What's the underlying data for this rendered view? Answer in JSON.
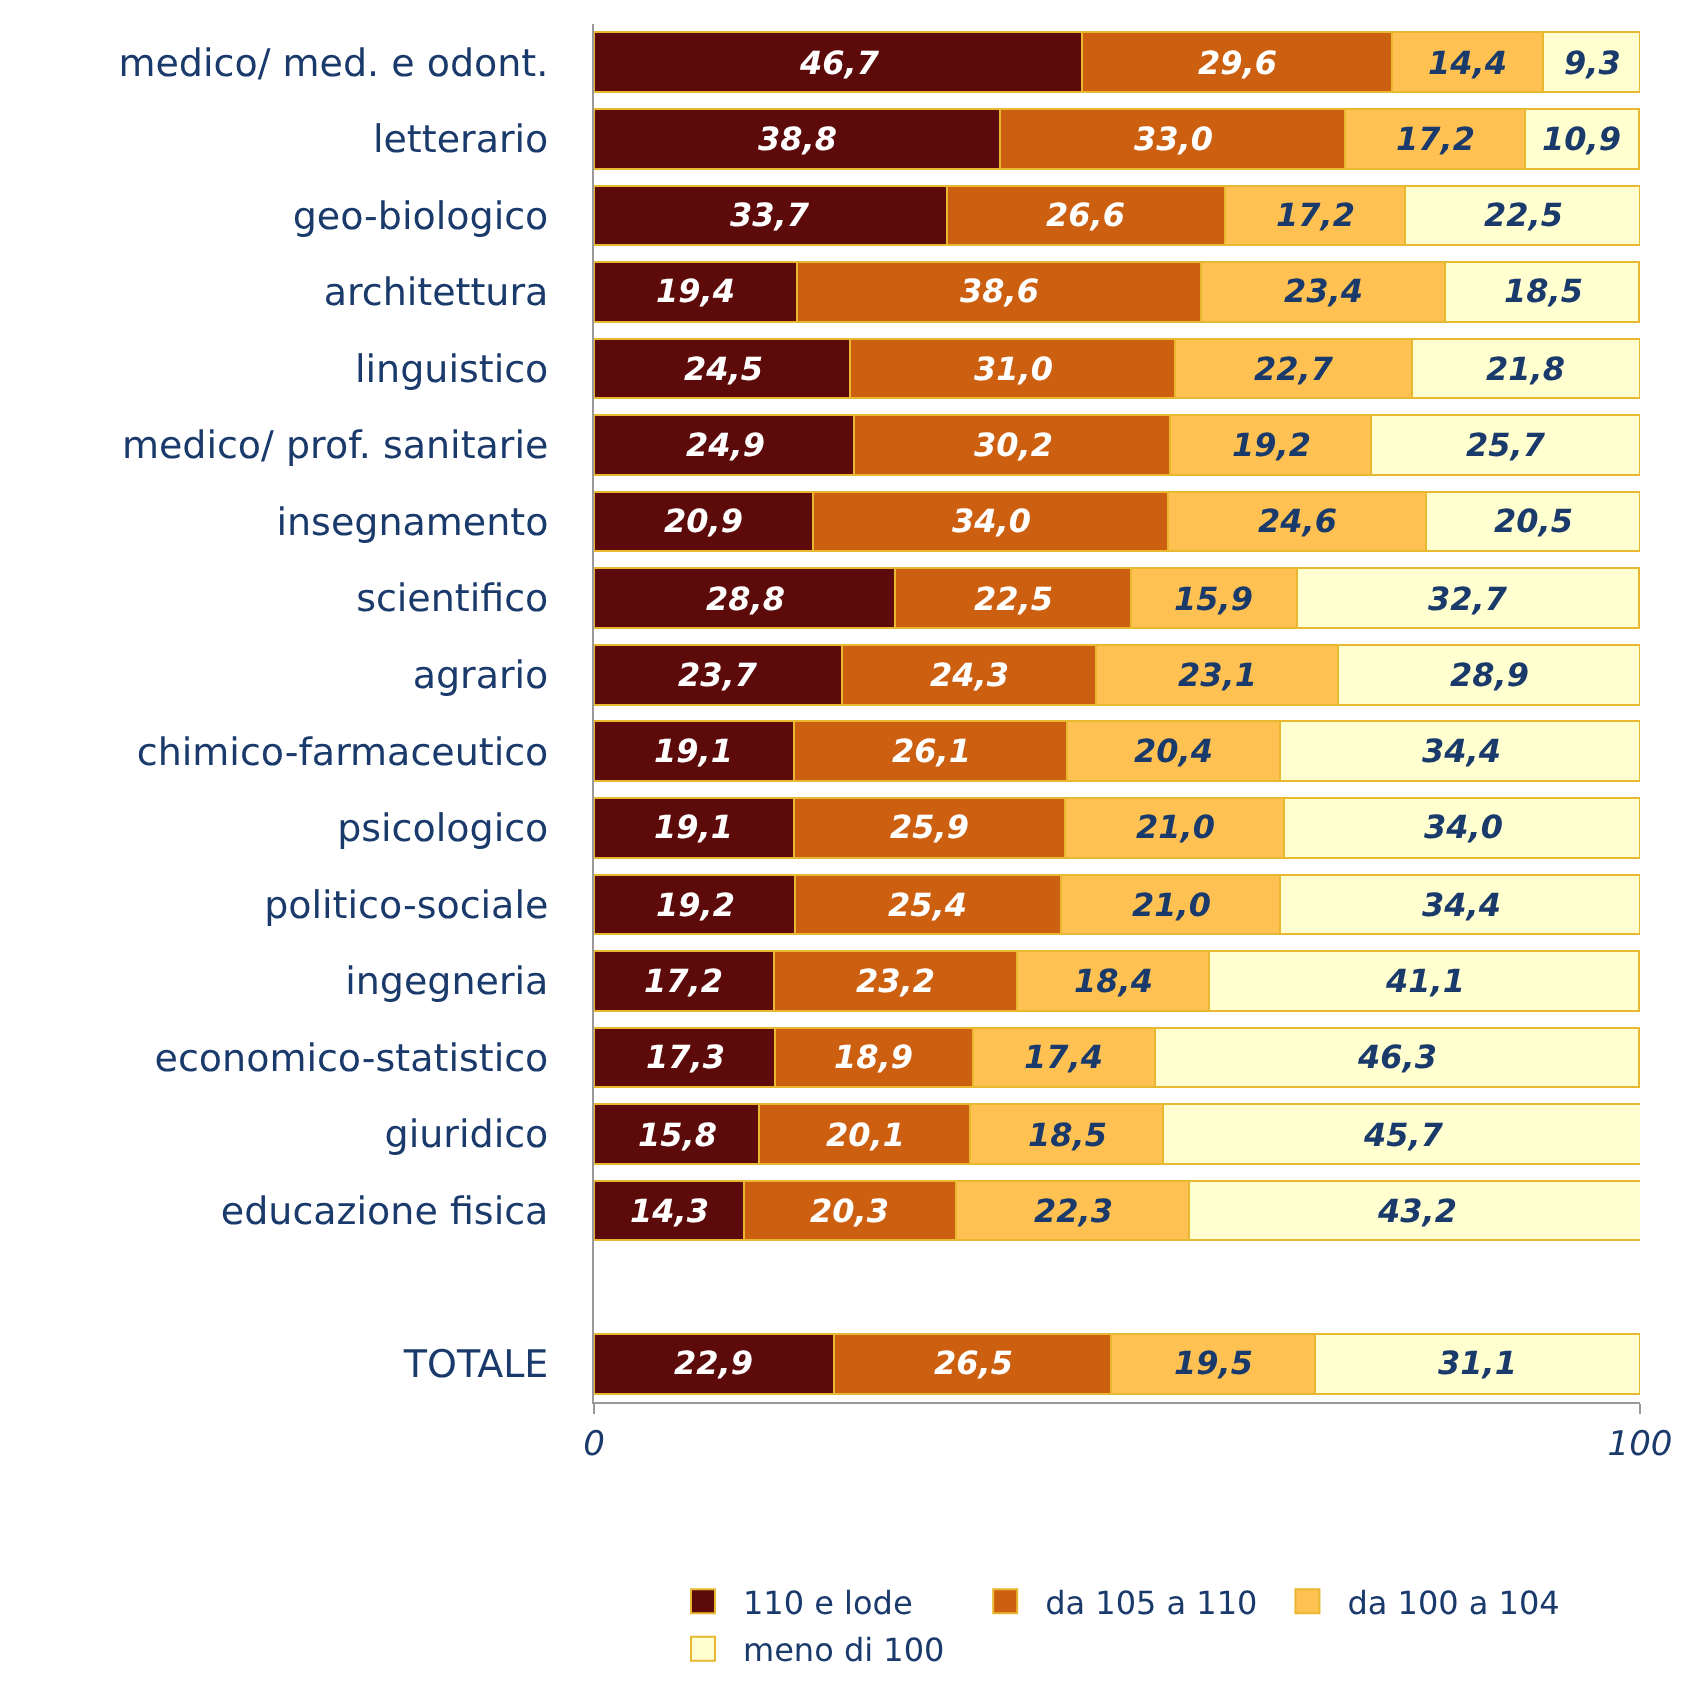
{
  "chart_data": {
    "type": "bar",
    "orientation": "horizontal",
    "stacked": true,
    "legend": "bottom",
    "xlim": [
      0,
      100
    ],
    "xticks": [
      0,
      100
    ],
    "categories": [
      "medico/ med. e odont.",
      "letterario",
      "geo-biologico",
      "architettura",
      "linguistico",
      "medico/ prof. sanitarie",
      "insegnamento",
      "scientifico",
      "agrario",
      "chimico-farmaceutico",
      "psicologico",
      "politico-sociale",
      "ingegneria",
      "economico-statistico",
      "giuridico",
      "educazione fisica",
      null,
      "TOTALE"
    ],
    "series": [
      {
        "name": "110 e lode",
        "color": "#5c0a0a",
        "values": [
          46.7,
          38.8,
          33.7,
          19.4,
          24.5,
          24.9,
          20.9,
          28.8,
          23.7,
          19.1,
          19.1,
          19.2,
          17.2,
          17.3,
          15.8,
          14.3,
          null,
          22.9
        ],
        "value_labels": [
          "46,7",
          "38,8",
          "33,7",
          "19,4",
          "24,5",
          "24,9",
          "20,9",
          "28,8",
          "23,7",
          "19,1",
          "19,1",
          "19,2",
          "17,2",
          "17,3",
          "15,8",
          "14,3",
          null,
          "22,9"
        ]
      },
      {
        "name": "da 105 a 110",
        "color": "#cc5f10",
        "values": [
          29.6,
          33.0,
          26.6,
          38.6,
          31.0,
          30.2,
          34.0,
          22.5,
          24.3,
          26.1,
          25.9,
          25.4,
          23.2,
          18.9,
          20.1,
          20.3,
          null,
          26.5
        ],
        "value_labels": [
          "29,6",
          "33,0",
          "26,6",
          "38,6",
          "31,0",
          "30,2",
          "34,0",
          "22,5",
          "24,3",
          "26,1",
          "25,9",
          "25,4",
          "23,2",
          "18,9",
          "20,1",
          "20,3",
          null,
          "26,5"
        ]
      },
      {
        "name": "da 100 a 104",
        "color": "#ffc252",
        "values": [
          14.4,
          17.2,
          17.2,
          23.4,
          22.7,
          19.2,
          24.6,
          15.9,
          23.1,
          20.4,
          21.0,
          21.0,
          18.4,
          17.4,
          18.5,
          22.3,
          null,
          19.5
        ],
        "value_labels": [
          "14,4",
          "17,2",
          "17,2",
          "23,4",
          "22,7",
          "19,2",
          "24,6",
          "15,9",
          "23,1",
          "20,4",
          "21,0",
          "21,0",
          "18,4",
          "17,4",
          "18,5",
          "22,3",
          null,
          "19,5"
        ]
      },
      {
        "name": "meno di 100",
        "color": "#ffffd0",
        "values": [
          9.3,
          10.9,
          22.5,
          18.5,
          21.8,
          25.7,
          20.5,
          32.7,
          28.9,
          34.4,
          34.0,
          34.4,
          41.1,
          46.3,
          45.7,
          43.2,
          null,
          31.1
        ],
        "value_labels": [
          "9,3",
          "10,9",
          "22,5",
          "18,5",
          "21,8",
          "25,7",
          "20,5",
          "32,7",
          "28,9",
          "34,4",
          "34,0",
          "34,4",
          "41,1",
          "46,3",
          "45,7",
          "43,2",
          null,
          "31,1"
        ]
      }
    ]
  }
}
